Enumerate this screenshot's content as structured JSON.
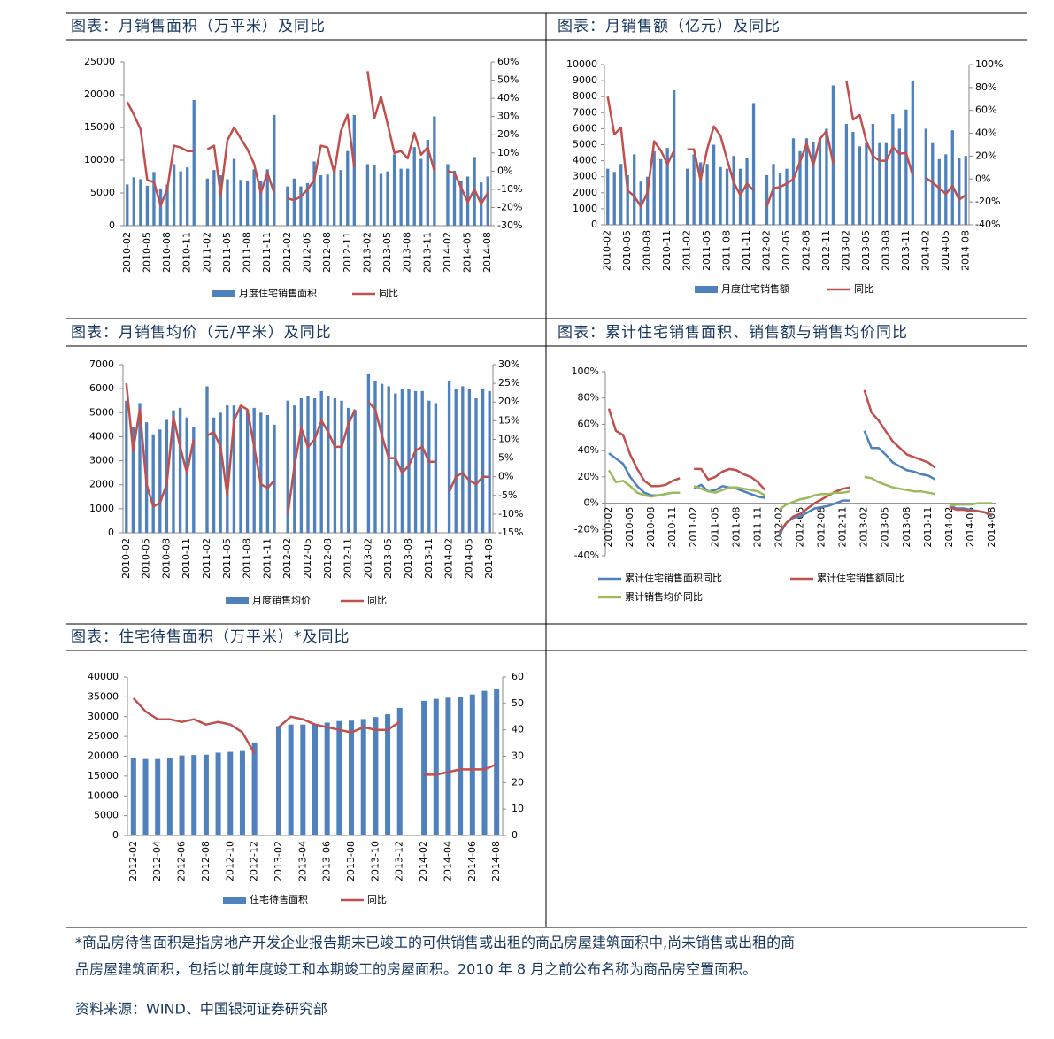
{
  "chart_data": [
    {
      "type": "bar",
      "title": "图表：月销售面积（万平米）及同比",
      "categories": [
        "2010-02",
        null,
        null,
        "2010-05",
        null,
        null,
        "2010-08",
        null,
        null,
        "2010-11",
        null,
        null,
        "2011-02",
        null,
        null,
        "2011-05",
        null,
        null,
        "2011-08",
        null,
        null,
        "2011-11",
        null,
        null,
        "2012-02",
        null,
        null,
        "2012-05",
        null,
        null,
        "2012-08",
        null,
        null,
        "2012-11",
        null,
        null,
        "2013-02",
        null,
        null,
        "2013-05",
        null,
        null,
        "2013-08",
        null,
        null,
        "2013-11",
        null,
        null,
        "2014-02",
        null,
        null,
        "2014-05",
        null,
        null,
        "2014-08"
      ],
      "series": [
        {
          "name": "月度住宅销售面积",
          "type": "bar",
          "color": "#4f81bd",
          "values": [
            6300,
            7400,
            7100,
            6100,
            8200,
            5700,
            6300,
            9400,
            8300,
            8900,
            19200,
            null,
            7200,
            8500,
            7700,
            7100,
            10200,
            7000,
            6900,
            8600,
            6900,
            8600,
            16900,
            null,
            6000,
            7200,
            6000,
            6500,
            9800,
            7700,
            7800,
            9100,
            8500,
            11400,
            16900,
            null,
            9400,
            9300,
            7900,
            8300,
            10900,
            8700,
            8700,
            12000,
            10200,
            13100,
            16700,
            null,
            9400,
            8400,
            6900,
            7500,
            10500,
            6600,
            7500
          ]
        },
        {
          "name": "同比",
          "type": "line",
          "axis": "y2",
          "color": "#c0504d",
          "values": [
            38,
            31,
            23,
            -5,
            -6,
            -19,
            -10,
            14,
            13,
            11,
            11,
            null,
            12,
            14,
            -13,
            17,
            24,
            18,
            12,
            4,
            -12,
            -1,
            -12,
            null,
            -15,
            -16,
            -14,
            -10,
            -5,
            14,
            13,
            -1,
            22,
            31,
            2,
            null,
            55,
            29,
            41,
            26,
            10,
            11,
            7,
            21,
            9,
            13,
            0,
            null,
            0,
            -1,
            -9,
            -17,
            -10,
            -18,
            -12
          ]
        }
      ],
      "ylim": [
        0,
        25000
      ],
      "yticks": [
        0,
        5000,
        10000,
        15000,
        20000,
        25000
      ],
      "y2lim": [
        -30,
        60
      ],
      "y2ticks": [
        {
          "value": -30,
          "label": "-30%"
        },
        {
          "value": -20,
          "label": "-20%"
        },
        {
          "value": -10,
          "label": "-10%"
        },
        {
          "value": 0,
          "label": "0%"
        },
        {
          "value": 10,
          "label": "10%"
        },
        {
          "value": 20,
          "label": "20%"
        },
        {
          "value": 30,
          "label": "30%"
        },
        {
          "value": 40,
          "label": "40%"
        },
        {
          "value": 50,
          "label": "50%"
        },
        {
          "value": 60,
          "label": "60%"
        }
      ]
    },
    {
      "type": "bar",
      "title": "图表：月销售额（亿元）及同比",
      "categories": [
        "2010-02",
        null,
        null,
        "2010-05",
        null,
        null,
        "2010-08",
        null,
        null,
        "2010-11",
        null,
        null,
        "2011-02",
        null,
        null,
        "2011-05",
        null,
        null,
        "2011-08",
        null,
        null,
        "2011-11",
        null,
        null,
        "2012-02",
        null,
        null,
        "2012-05",
        null,
        null,
        "2012-08",
        null,
        null,
        "2012-11",
        null,
        null,
        "2013-02",
        null,
        null,
        "2013-05",
        null,
        null,
        "2013-08",
        null,
        null,
        "2013-11",
        null,
        null,
        "2014-02",
        null,
        null,
        "2014-05",
        null,
        null,
        "2014-08"
      ],
      "series": [
        {
          "name": "月度住宅销售额",
          "type": "bar",
          "color": "#4f81bd",
          "values": [
            3500,
            3300,
            3800,
            3100,
            4400,
            2700,
            3000,
            4600,
            4100,
            4800,
            8400,
            null,
            3500,
            4400,
            3900,
            3800,
            5000,
            3600,
            3500,
            4300,
            3500,
            4200,
            7600,
            null,
            3100,
            3800,
            3200,
            3500,
            5400,
            4600,
            5400,
            5200,
            5400,
            6000,
            8700,
            null,
            6300,
            5800,
            4900,
            5100,
            6300,
            5100,
            5100,
            6900,
            6000,
            7200,
            9000,
            null,
            6000,
            5100,
            4100,
            4400,
            5900,
            4200,
            4300
          ]
        },
        {
          "name": "同比",
          "type": "line",
          "axis": "y2",
          "color": "#c0504d",
          "values": [
            72,
            39,
            45,
            -10,
            -15,
            -24,
            -12,
            33,
            25,
            13,
            25,
            null,
            26,
            26,
            -1,
            26,
            46,
            38,
            17,
            -3,
            -14,
            -4,
            -10,
            null,
            -24,
            -8,
            -7,
            -4,
            0,
            15,
            31,
            12,
            35,
            42,
            14,
            null,
            86,
            52,
            56,
            33,
            20,
            16,
            16,
            28,
            22,
            23,
            3,
            null,
            1,
            -3,
            -8,
            -13,
            -6,
            -18,
            -14
          ]
        }
      ],
      "ylim": [
        0,
        10000
      ],
      "yticks": [
        0,
        1000,
        2000,
        3000,
        4000,
        5000,
        6000,
        7000,
        8000,
        9000,
        10000
      ],
      "y2lim": [
        -40,
        100
      ],
      "y2ticks": [
        {
          "value": -40,
          "label": "-40%"
        },
        {
          "value": -20,
          "label": "-20%"
        },
        {
          "value": 0,
          "label": "0%"
        },
        {
          "value": 20,
          "label": "20%"
        },
        {
          "value": 40,
          "label": "40%"
        },
        {
          "value": 60,
          "label": "60%"
        },
        {
          "value": 80,
          "label": "80%"
        },
        {
          "value": 100,
          "label": "100%"
        }
      ]
    },
    {
      "type": "bar",
      "title": "图表：月销售均价（元/平米）及同比",
      "categories": [
        "2010-02",
        null,
        null,
        "2010-05",
        null,
        null,
        "2010-08",
        null,
        null,
        "2010-11",
        null,
        null,
        "2011-02",
        null,
        null,
        "2011-05",
        null,
        null,
        "2011-08",
        null,
        null,
        "2011-11",
        null,
        null,
        "2012-02",
        null,
        null,
        "2012-05",
        null,
        null,
        "2012-08",
        null,
        null,
        "2012-11",
        null,
        null,
        "2013-02",
        null,
        null,
        "2013-05",
        null,
        null,
        "2013-08",
        null,
        null,
        "2013-11",
        null,
        null,
        "2014-02",
        null,
        null,
        "2014-05",
        null,
        null,
        "2014-08"
      ],
      "series": [
        {
          "name": "月度销售均价",
          "type": "bar",
          "color": "#4f81bd",
          "values": [
            5500,
            4400,
            5400,
            4600,
            4100,
            4300,
            4700,
            5100,
            5200,
            4800,
            4400,
            null,
            6100,
            4800,
            5000,
            5300,
            5300,
            5200,
            5100,
            5200,
            5000,
            4900,
            4500,
            null,
            5500,
            5300,
            5600,
            5700,
            5600,
            5900,
            5700,
            5600,
            5500,
            5200,
            5100,
            null,
            6600,
            6300,
            6200,
            6100,
            5800,
            6000,
            6000,
            5900,
            5900,
            5500,
            5400,
            null,
            6300,
            6000,
            6100,
            6000,
            5600,
            6000,
            5900
          ]
        },
        {
          "name": "同比",
          "type": "line",
          "axis": "y2",
          "color": "#c0504d",
          "values": [
            25,
            7,
            18,
            -2,
            -8,
            -7,
            -2,
            16,
            8,
            1,
            10,
            null,
            11,
            12,
            8,
            -5,
            15,
            19,
            18,
            8,
            -2,
            -3,
            -1,
            null,
            -10,
            3,
            13,
            8,
            10,
            15,
            12,
            8,
            8,
            14,
            18,
            null,
            20,
            18,
            11,
            5,
            5,
            1,
            3,
            7,
            8,
            4,
            4,
            null,
            -4,
            0,
            1,
            -1,
            -2,
            0,
            0
          ]
        }
      ],
      "ylim": [
        0,
        7000
      ],
      "yticks": [
        0,
        1000,
        2000,
        3000,
        4000,
        5000,
        6000,
        7000
      ],
      "y2lim": [
        -15,
        30
      ],
      "y2ticks": [
        {
          "value": -15,
          "label": "-15%"
        },
        {
          "value": -10,
          "label": "-10%"
        },
        {
          "value": -5,
          "label": "-5%"
        },
        {
          "value": 0,
          "label": "0%"
        },
        {
          "value": 5,
          "label": "5%"
        },
        {
          "value": 10,
          "label": "10%"
        },
        {
          "value": 15,
          "label": "15%"
        },
        {
          "value": 20,
          "label": "20%"
        },
        {
          "value": 25,
          "label": "25%"
        },
        {
          "value": 30,
          "label": "30%"
        }
      ]
    },
    {
      "type": "line",
      "title": "图表：累计住宅销售面积、销售额与销售均价同比",
      "categories": [
        "2010-02",
        null,
        null,
        "2010-05",
        null,
        null,
        "2010-08",
        null,
        null,
        "2010-11",
        null,
        null,
        "2011-02",
        null,
        null,
        "2011-05",
        null,
        null,
        "2011-08",
        null,
        null,
        "2011-11",
        null,
        null,
        "2012-02",
        null,
        null,
        "2012-05",
        null,
        null,
        "2012-08",
        null,
        null,
        "2012-11",
        null,
        null,
        "2013-02",
        null,
        null,
        "2013-05",
        null,
        null,
        "2013-08",
        null,
        null,
        "2013-11",
        null,
        null,
        "2014-02",
        null,
        null,
        "2014-05",
        null,
        null,
        "2014-08"
      ],
      "series": [
        {
          "name": "累计住宅销售面积同比",
          "type": "line",
          "color": "#4f81bd",
          "values": [
            38,
            34,
            30,
            20,
            13,
            8,
            6,
            6,
            7,
            8,
            8,
            null,
            11,
            14,
            9,
            10,
            13,
            12,
            11,
            9,
            7,
            5,
            4,
            null,
            -24,
            -15,
            -11,
            -10,
            -7,
            -4,
            -3,
            -2,
            0,
            2,
            2,
            null,
            55,
            42,
            42,
            37,
            31,
            28,
            25,
            24,
            22,
            21,
            18,
            null,
            -2,
            -4,
            -4,
            -5,
            -6,
            -7,
            -10
          ]
        },
        {
          "name": "累计住宅销售额同比",
          "type": "line",
          "color": "#c0504d",
          "values": [
            72,
            55,
            52,
            37,
            26,
            17,
            13,
            13,
            14,
            17,
            19,
            null,
            26,
            26,
            18,
            20,
            24,
            26,
            25,
            22,
            20,
            16,
            10,
            null,
            -22,
            -15,
            -10,
            -8,
            -4,
            0,
            3,
            6,
            9,
            11,
            12,
            null,
            86,
            69,
            63,
            55,
            47,
            42,
            37,
            35,
            33,
            31,
            27,
            null,
            -3,
            -5,
            -5,
            -6,
            -6,
            -7,
            -9
          ]
        },
        {
          "name": "累计销售均价同比",
          "type": "line",
          "color": "#9bbb59",
          "values": [
            25,
            16,
            17,
            13,
            8,
            6,
            5,
            6,
            7,
            8,
            8,
            null,
            13,
            11,
            9,
            8,
            10,
            12,
            12,
            11,
            10,
            9,
            6,
            null,
            -5,
            -1,
            1,
            3,
            4,
            6,
            7,
            7,
            8,
            8,
            9,
            null,
            20,
            19,
            16,
            14,
            12,
            11,
            10,
            9,
            9,
            8,
            7,
            null,
            -2,
            -1,
            -1,
            -1,
            0,
            0,
            0
          ]
        }
      ],
      "ylim": [
        -40,
        100
      ],
      "yticks": [
        {
          "value": -40,
          "label": "-40%"
        },
        {
          "value": -20,
          "label": "-20%"
        },
        {
          "value": 0,
          "label": "0%"
        },
        {
          "value": 20,
          "label": "20%"
        },
        {
          "value": 40,
          "label": "40%"
        },
        {
          "value": 60,
          "label": "60%"
        },
        {
          "value": 80,
          "label": "80%"
        },
        {
          "value": 100,
          "label": "100%"
        }
      ]
    },
    {
      "type": "bar",
      "title": "图表：住宅待售面积（万平米）*及同比",
      "categories": [
        "2012-02",
        null,
        "2012-04",
        null,
        "2012-06",
        null,
        "2012-08",
        null,
        "2012-10",
        null,
        "2012-12",
        null,
        "2013-02",
        null,
        "2013-04",
        null,
        "2013-06",
        null,
        "2013-08",
        null,
        "2013-10",
        null,
        "2013-12",
        null,
        "2014-02",
        null,
        "2014-04",
        null,
        "2014-06",
        null,
        "2014-08"
      ],
      "series": [
        {
          "name": "住宅待售面积",
          "type": "bar",
          "color": "#4f81bd",
          "values": [
            19500,
            19300,
            19300,
            19500,
            20200,
            20300,
            20400,
            20900,
            21100,
            21300,
            23500,
            null,
            27600,
            28000,
            28000,
            28100,
            28500,
            28900,
            29000,
            29400,
            29900,
            30600,
            32200,
            null,
            34000,
            34500,
            34800,
            35000,
            35600,
            36500,
            37000
          ]
        },
        {
          "name": "同比",
          "type": "line",
          "axis": "y2",
          "color": "#c0504d",
          "values": [
            52,
            47,
            44,
            44,
            43,
            44,
            42,
            43,
            42,
            39,
            31,
            null,
            41,
            45,
            44,
            42,
            41,
            40,
            39,
            41,
            40,
            40,
            43,
            null,
            23,
            23,
            24,
            25,
            25,
            25,
            27
          ]
        }
      ],
      "ylim": [
        0,
        40000
      ],
      "yticks": [
        0,
        5000,
        10000,
        15000,
        20000,
        25000,
        30000,
        35000,
        40000
      ],
      "y2lim": [
        0,
        60
      ],
      "y2ticks": [
        0,
        10,
        20,
        30,
        40,
        50,
        60
      ]
    }
  ],
  "footnote": [
    "*商品房待售面积是指房地产开发企业报告期末已竣工的可供销售或出租的商品房屋建筑面积中,尚未销售或出租的商",
    "品房屋建筑面积，包括以前年度竣工和本期竣工的房屋面积。2010 年 8 月之前公布名称为商品房空置面积。"
  ],
  "source": "资料来源：WIND、中国银河证券研究部"
}
